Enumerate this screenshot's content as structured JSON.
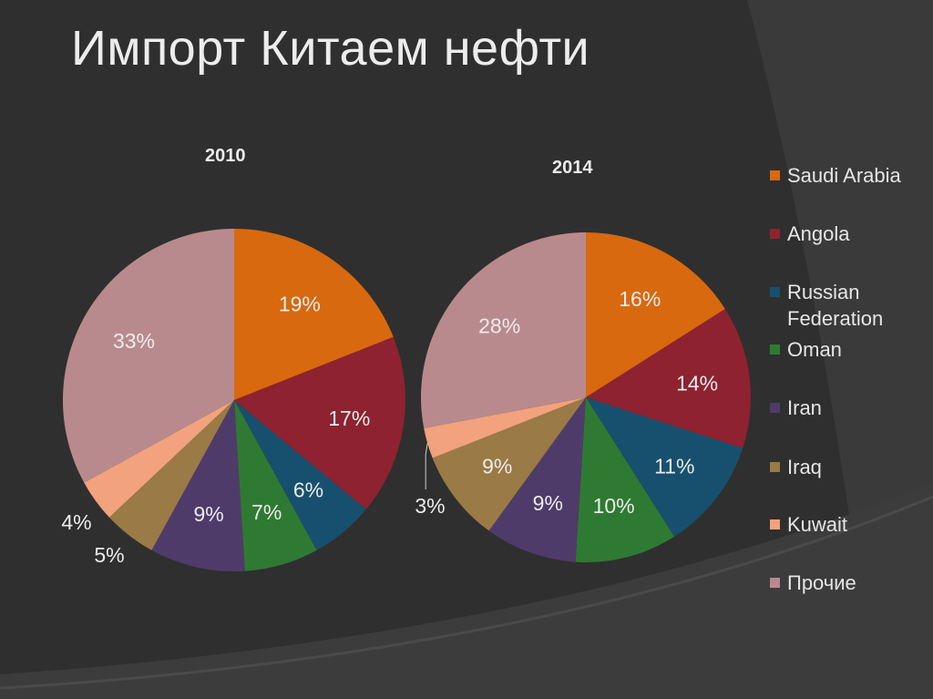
{
  "slide_title": "Импорт Китаем нефти",
  "legend": [
    {
      "label": "Saudi Arabia",
      "color": "#d8690f"
    },
    {
      "label": "Angola",
      "color": "#8e2230"
    },
    {
      "label": "Russian Federation",
      "color": "#17506e"
    },
    {
      "label": "Oman",
      "color": "#2f7a32"
    },
    {
      "label": "Iran",
      "color": "#4f3b6a"
    },
    {
      "label": "Iraq",
      "color": "#9a7a45"
    },
    {
      "label": "Kuwait",
      "color": "#f2a27c"
    },
    {
      "label": "Прочие",
      "color": "#b98a8d"
    }
  ],
  "chart_data": [
    {
      "type": "pie",
      "title": "2010",
      "categories": [
        "Saudi Arabia",
        "Angola",
        "Russian Federation",
        "Oman",
        "Iran",
        "Iraq",
        "Kuwait",
        "Прочие"
      ],
      "values": [
        19,
        17,
        6,
        7,
        9,
        5,
        4,
        33
      ],
      "labels": [
        "19%",
        "17%",
        "6%",
        "7%",
        "9%",
        "5%",
        "4%",
        "33%"
      ]
    },
    {
      "type": "pie",
      "title": "2014",
      "categories": [
        "Saudi Arabia",
        "Angola",
        "Russian Federation",
        "Oman",
        "Iran",
        "Iraq",
        "Kuwait",
        "Прочие"
      ],
      "values": [
        16,
        14,
        11,
        10,
        9,
        9,
        3,
        28
      ],
      "labels": [
        "16%",
        "14%",
        "11%",
        "10%",
        "9%",
        "9%",
        "3%",
        "28%"
      ]
    }
  ]
}
